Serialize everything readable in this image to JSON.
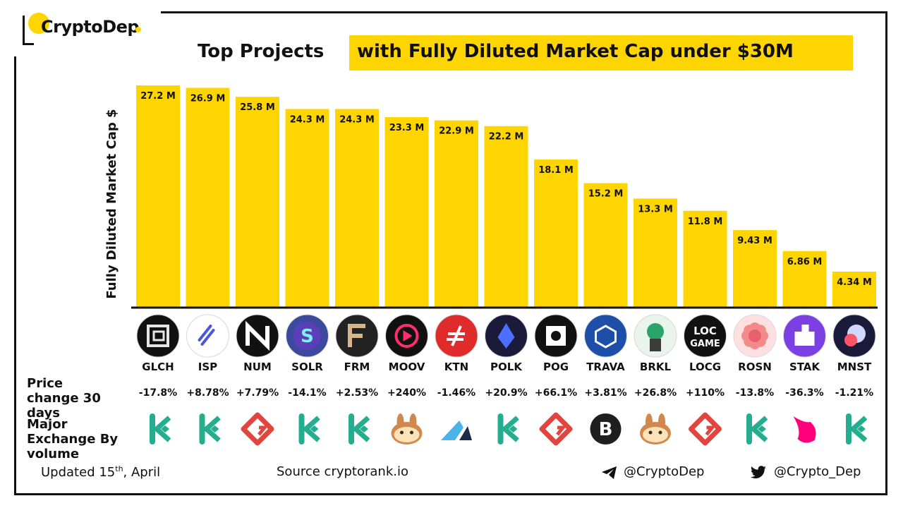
{
  "brand": {
    "name": "CryptoDep"
  },
  "title": {
    "part1": "Top Projects",
    "part2": "with Fully Diluted Market Cap under $30M"
  },
  "chart_data": {
    "type": "bar",
    "title": "Top Projects with Fully Diluted Market Cap under $30M",
    "ylabel": "Fully Diluted Market Cap $",
    "xlabel": "",
    "ylim": [
      0,
      28.5
    ],
    "categories": [
      "GLCH",
      "ISP",
      "NUM",
      "SOLR",
      "FRM",
      "MOOV",
      "KTN",
      "POLK",
      "POG",
      "TRAVA",
      "BRKL",
      "LOCG",
      "ROSN",
      "STAK",
      "MNST"
    ],
    "values": [
      27.2,
      26.9,
      25.8,
      24.3,
      24.3,
      23.3,
      22.9,
      22.2,
      18.1,
      15.2,
      13.3,
      11.8,
      9.43,
      6.86,
      4.34
    ],
    "value_labels": [
      "27.2 M",
      "26.9 M",
      "25.8 M",
      "24.3 M",
      "24.3 M",
      "23.3 M",
      "22.9 M",
      "22.2 M",
      "18.1 M",
      "15.2 M",
      "13.3 M",
      "11.8 M",
      "9.43 M",
      "6.86 M",
      "4.34 M"
    ],
    "bar_color": "#ffd500"
  },
  "price_change": {
    "label": "Price change 30 days",
    "values": [
      "-17.8%",
      "+8.78%",
      "+7.79%",
      "-14.1%",
      "+2.53%",
      "+240%",
      "-1.46%",
      "+20.9%",
      "+66.1%",
      "+3.81%",
      "+26.8%",
      "+110%",
      "-13.8%",
      "-36.3%",
      "-1.21%"
    ]
  },
  "exchange": {
    "label": "Major Exchange By volume",
    "icons": [
      "kucoin-icon",
      "kucoin-icon",
      "gate-icon",
      "kucoin-icon",
      "kucoin-icon",
      "pancakeswap-icon",
      "mexc-icon",
      "kucoin-icon",
      "gate-icon",
      "bybit-icon",
      "pancakeswap-icon",
      "gate-icon",
      "kucoin-icon",
      "uniswap-icon",
      "kucoin-icon"
    ]
  },
  "token_icons": [
    {
      "name": "glch-icon",
      "bg": "#111111",
      "text": ""
    },
    {
      "name": "isp-icon",
      "bg": "#ffffff",
      "text": ""
    },
    {
      "name": "num-icon",
      "bg": "#111111",
      "text": ""
    },
    {
      "name": "solr-icon",
      "bg": "#3b4a9c",
      "text": ""
    },
    {
      "name": "frm-icon",
      "bg": "#222222",
      "text": ""
    },
    {
      "name": "moov-icon",
      "bg": "#111111",
      "text": ""
    },
    {
      "name": "ktn-icon",
      "bg": "#e02b2b",
      "text": ""
    },
    {
      "name": "polk-icon",
      "bg": "#1a1a3a",
      "text": ""
    },
    {
      "name": "pog-icon",
      "bg": "#111111",
      "text": ""
    },
    {
      "name": "trava-icon",
      "bg": "#1d4fa8",
      "text": ""
    },
    {
      "name": "brkl-icon",
      "bg": "#e8f4ec",
      "text": ""
    },
    {
      "name": "locg-icon",
      "bg": "#111111",
      "text": "LOC GAME"
    },
    {
      "name": "rosn-icon",
      "bg": "#ffe0e0",
      "text": ""
    },
    {
      "name": "stak-icon",
      "bg": "#7b3fe4",
      "text": ""
    },
    {
      "name": "mnst-icon",
      "bg": "#1a1a3a",
      "text": ""
    }
  ],
  "colors": {
    "kucoin": "#24ae8f",
    "gate": "#e0453f",
    "pancake": "#d1884f",
    "uniswap": "#ff007a"
  },
  "footer": {
    "updated_prefix": "Updated 15",
    "updated_sup": "th",
    "updated_suffix": ", April",
    "source": "Source  cryptorank.io",
    "telegram": "@CryptoDep",
    "twitter": "@Crypto_Dep"
  }
}
